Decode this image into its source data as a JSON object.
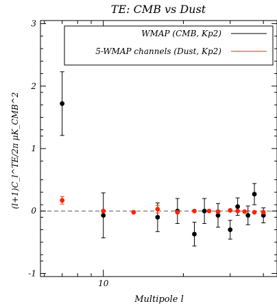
{
  "chart_data": {
    "type": "scatter",
    "title": "TE: CMB vs Dust",
    "xlabel": "Multipole l",
    "ylabel": "(l+1)C_l^TE/2π μK_CMB^2",
    "x_scale": "log",
    "xlim": [
      5.8,
      45
    ],
    "ylim": [
      -1.05,
      3.05
    ],
    "x_ticks": [
      {
        "value": 10,
        "label": "10"
      }
    ],
    "y_ticks": [
      {
        "value": -1,
        "label": "-1"
      },
      {
        "value": 0,
        "label": "0"
      },
      {
        "value": 1,
        "label": "1"
      },
      {
        "value": 2,
        "label": "2"
      },
      {
        "value": 3,
        "label": "3"
      }
    ],
    "reference_line": {
      "y": 0,
      "style": "dashed"
    },
    "legend_position": "top-right",
    "series": [
      {
        "name": "WMAP (CMB, Kp2)",
        "color": "#000000",
        "points": [
          {
            "x": 7,
            "y": 1.72,
            "err": 0.51
          },
          {
            "x": 10,
            "y": -0.07,
            "err": 0.36
          },
          {
            "x": 16,
            "y": -0.1,
            "err": 0.23
          },
          {
            "x": 19,
            "y": 0.0,
            "err": 0.2
          },
          {
            "x": 22,
            "y": -0.37,
            "err": 0.19
          },
          {
            "x": 24,
            "y": 0.0,
            "err": 0.2
          },
          {
            "x": 27,
            "y": -0.07,
            "err": 0.19
          },
          {
            "x": 30,
            "y": -0.3,
            "err": 0.15
          },
          {
            "x": 32,
            "y": 0.07,
            "err": 0.14
          },
          {
            "x": 35,
            "y": -0.07,
            "err": 0.15
          },
          {
            "x": 37,
            "y": 0.27,
            "err": 0.17
          },
          {
            "x": 40,
            "y": -0.07,
            "err": 0.12
          }
        ]
      },
      {
        "name": "5-WMAP channels (Dust, Kp2)",
        "color": "#ff2200",
        "points": [
          {
            "x": 7,
            "y": 0.17,
            "err": 0.06
          },
          {
            "x": 10,
            "y": 0.0,
            "err": 0.0
          },
          {
            "x": 13,
            "y": -0.02,
            "err": 0.0
          },
          {
            "x": 16,
            "y": 0.03,
            "err": 0.06
          },
          {
            "x": 19,
            "y": -0.02,
            "err": 0.0
          },
          {
            "x": 22,
            "y": 0.0,
            "err": 0.0
          },
          {
            "x": 25,
            "y": 0.0,
            "err": 0.0
          },
          {
            "x": 27,
            "y": -0.01,
            "err": 0.0
          },
          {
            "x": 30,
            "y": 0.01,
            "err": 0.0
          },
          {
            "x": 32,
            "y": 0.0,
            "err": 0.0
          },
          {
            "x": 34,
            "y": -0.01,
            "err": 0.0
          },
          {
            "x": 37,
            "y": -0.02,
            "err": 0.0
          },
          {
            "x": 40,
            "y": -0.02,
            "err": 0.0
          }
        ]
      }
    ]
  }
}
